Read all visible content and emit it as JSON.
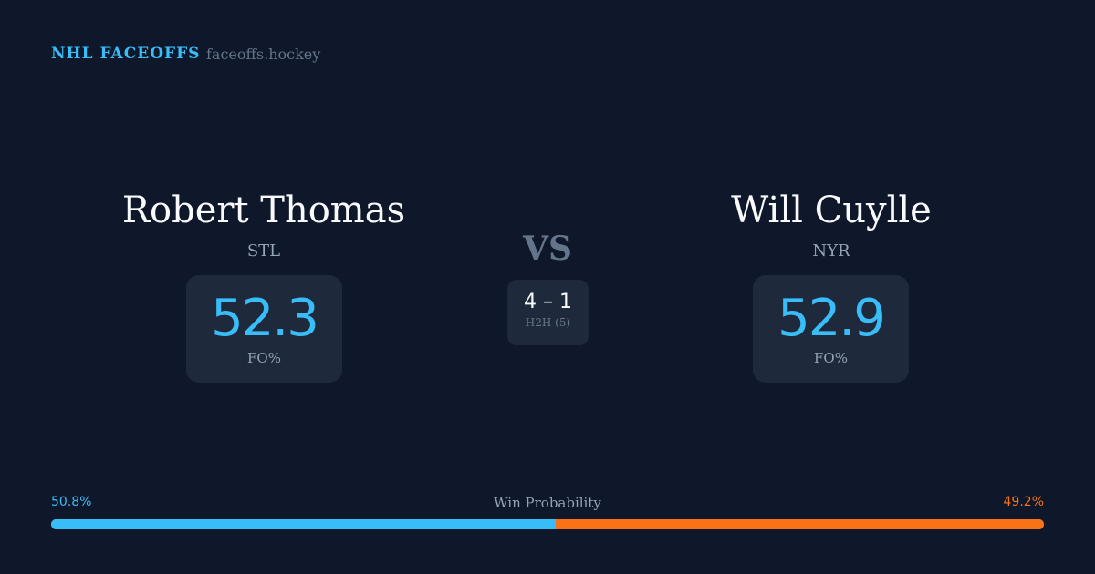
{
  "header": {
    "brand": "NHL FACEOFFS",
    "domain": "faceoffs.hockey"
  },
  "players": [
    {
      "name": "Robert Thomas",
      "team": "STL",
      "fo_pct": "52.3",
      "fo_label": "FO%"
    },
    {
      "name": "Will Cuylle",
      "team": "NYR",
      "fo_pct": "52.9",
      "fo_label": "FO%"
    }
  ],
  "vs": "VS",
  "h2h": {
    "score": "4 – 1",
    "label": "H2H (5)"
  },
  "win_probability": {
    "label": "Win Probability",
    "left_label": "50.8%",
    "right_label": "49.2%",
    "left_value": 50.8,
    "right_value": 49.2,
    "left_color": "#38bdf8",
    "right_color": "#f97316"
  }
}
